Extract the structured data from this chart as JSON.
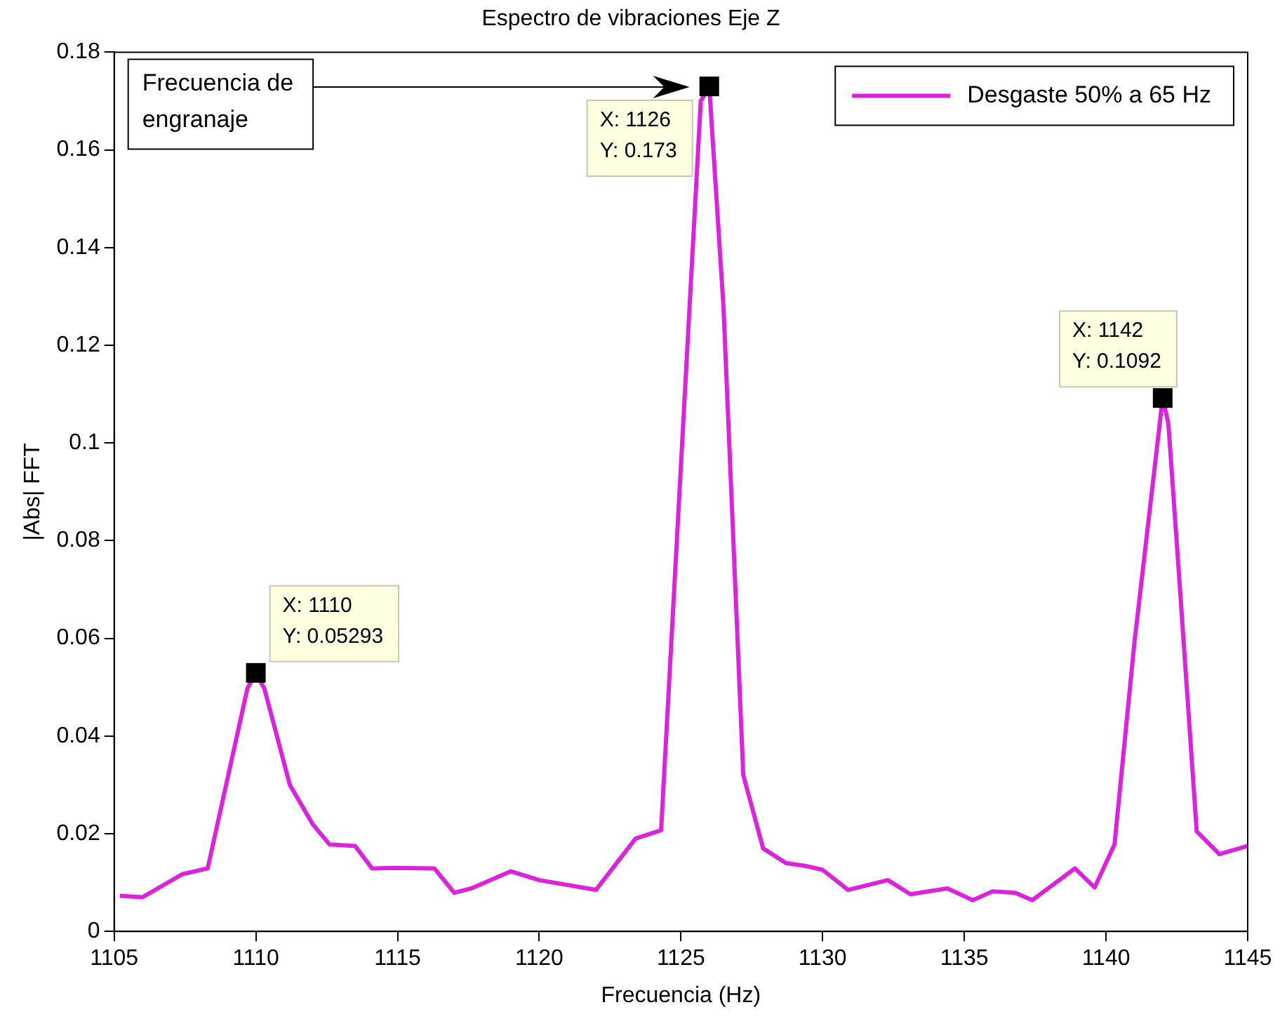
{
  "chart_data": {
    "type": "line",
    "title": "Espectro de vibraciones Eje Z",
    "xlabel": "Frecuencia (Hz)",
    "ylabel": "|Abs| FFT",
    "xlim": [
      1105,
      1145
    ],
    "xticks": [
      1105,
      1110,
      1115,
      1120,
      1125,
      1130,
      1135,
      1140,
      1145
    ],
    "ylim": [
      0,
      0.18
    ],
    "yticks": [
      0,
      0.02,
      0.04,
      0.06,
      0.08,
      0.1,
      0.12,
      0.14,
      0.16,
      0.18
    ],
    "grid": false,
    "legend": "top right",
    "marker": "none",
    "line_style": "solid",
    "series": [
      {
        "name": "Desgaste 50% a 65 Hz",
        "color": "#dd22dd",
        "x": [
          1105.2,
          1106,
          1107.4,
          1108.3,
          1109.7,
          1110,
          1110.3,
          1111.2,
          1112,
          1112.6,
          1113.5,
          1114.1,
          1114.9,
          1116.3,
          1117,
          1117.6,
          1119,
          1120,
          1122,
          1123.4,
          1124.3,
          1125.7,
          1126,
          1126.5,
          1127.2,
          1127.9,
          1128.7,
          1129.4,
          1130,
          1130.9,
          1132.3,
          1133.1,
          1134.4,
          1135.3,
          1136,
          1136.8,
          1137.4,
          1138.9,
          1139.6,
          1140.3,
          1141,
          1142,
          1142.2,
          1142.6,
          1143.2,
          1144,
          1145
        ],
        "values": [
          0.0073,
          0.007,
          0.0117,
          0.0129,
          0.0497,
          0.05293,
          0.0497,
          0.03,
          0.022,
          0.0178,
          0.0175,
          0.0129,
          0.013,
          0.0129,
          0.0079,
          0.0088,
          0.0123,
          0.0105,
          0.0085,
          0.019,
          0.0207,
          0.17,
          0.173,
          0.128,
          0.032,
          0.017,
          0.014,
          0.0134,
          0.0126,
          0.0085,
          0.0105,
          0.0076,
          0.0088,
          0.0064,
          0.0082,
          0.0079,
          0.0064,
          0.0129,
          0.009,
          0.0178,
          0.059,
          0.1092,
          0.104,
          0.071,
          0.0205,
          0.0158,
          0.0175
        ]
      }
    ],
    "annotations": [
      {
        "text": "X: 1110\nY: 0.05293",
        "x": 1110,
        "y": 0.05293
      },
      {
        "text": "X: 1126\nY: 0.173",
        "x": 1126,
        "y": 0.173
      },
      {
        "text": "X: 1142\nY: 0.1092",
        "x": 1142,
        "y": 0.1092
      },
      "Frecuencia de\nengranaje"
    ]
  }
}
